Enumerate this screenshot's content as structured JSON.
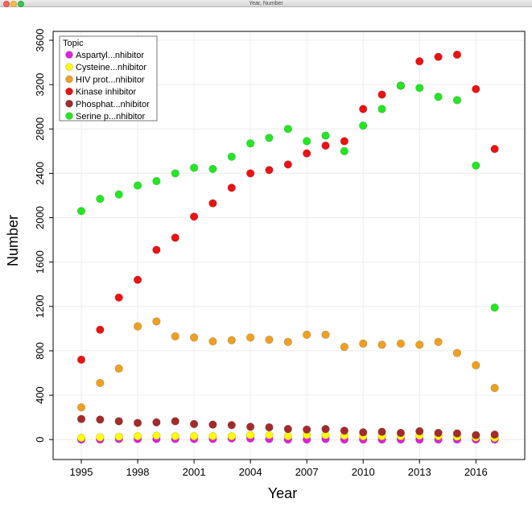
{
  "window": {
    "title": "Year, Number",
    "controls": [
      "close-icon",
      "minimize-icon",
      "maximize-icon"
    ]
  },
  "chart_data": {
    "type": "scatter",
    "title": "",
    "xlabel": "Year",
    "ylabel": "Number",
    "xlim": [
      1993.5,
      2018.6
    ],
    "ylim": [
      -180,
      3680
    ],
    "x_ticks": [
      1995,
      1998,
      2001,
      2004,
      2007,
      2010,
      2013,
      2016
    ],
    "y_ticks": [
      0,
      400,
      800,
      1200,
      1600,
      2000,
      2400,
      2800,
      3200,
      3600
    ],
    "grid": true,
    "legend": {
      "title": "Topic",
      "placement": "top-left"
    },
    "series": [
      {
        "name": "Aspartyl...nhibitor",
        "color": "#e020e0",
        "x": [
          1995,
          1996,
          1997,
          1998,
          1999,
          2000,
          2001,
          2002,
          2003,
          2004,
          2005,
          2006,
          2007,
          2008,
          2009,
          2010,
          2011,
          2012,
          2013,
          2014,
          2015,
          2016,
          2017
        ],
        "y": [
          0,
          0,
          5,
          5,
          5,
          5,
          5,
          5,
          10,
          10,
          5,
          0,
          0,
          5,
          0,
          0,
          0,
          0,
          0,
          0,
          0,
          0,
          0
        ]
      },
      {
        "name": "Cysteine...nhibitor",
        "color": "#ffff00",
        "x": [
          1995,
          1996,
          1997,
          1998,
          1999,
          2000,
          2001,
          2002,
          2003,
          2004,
          2005,
          2006,
          2007,
          2008,
          2009,
          2010,
          2011,
          2012,
          2013,
          2014,
          2015,
          2016,
          2017
        ],
        "y": [
          15,
          20,
          25,
          30,
          35,
          30,
          30,
          30,
          30,
          40,
          40,
          30,
          40,
          40,
          35,
          30,
          30,
          30,
          35,
          30,
          25,
          20,
          15
        ]
      },
      {
        "name": "HIV prot...nhibitor",
        "color": "#f0a020",
        "x": [
          1995,
          1996,
          1997,
          1998,
          1999,
          2000,
          2001,
          2002,
          2003,
          2004,
          2005,
          2006,
          2007,
          2008,
          2009,
          2010,
          2011,
          2012,
          2013,
          2014,
          2015,
          2016,
          2017
        ],
        "y": [
          290,
          510,
          640,
          1020,
          1065,
          930,
          920,
          885,
          895,
          920,
          900,
          880,
          945,
          945,
          835,
          865,
          855,
          865,
          855,
          880,
          780,
          670,
          465
        ]
      },
      {
        "name": "Kinase inhibitor",
        "color": "#ee1111",
        "x": [
          1995,
          1996,
          1997,
          1998,
          1999,
          2000,
          2001,
          2002,
          2003,
          2004,
          2005,
          2006,
          2007,
          2008,
          2009,
          2010,
          2011,
          2012,
          2013,
          2014,
          2015,
          2016,
          2017
        ],
        "y": [
          720,
          990,
          1280,
          1440,
          1710,
          1820,
          2010,
          2130,
          2270,
          2400,
          2430,
          2480,
          2580,
          2650,
          2690,
          2980,
          3110,
          3190,
          3410,
          3450,
          3470,
          3160,
          2620
        ]
      },
      {
        "name": "Phosphat...nhibitor",
        "color": "#a52a2a",
        "x": [
          1995,
          1996,
          1997,
          1998,
          1999,
          2000,
          2001,
          2002,
          2003,
          2004,
          2005,
          2006,
          2007,
          2008,
          2009,
          2010,
          2011,
          2012,
          2013,
          2014,
          2015,
          2016,
          2017
        ],
        "y": [
          185,
          180,
          165,
          150,
          155,
          165,
          140,
          135,
          130,
          115,
          110,
          95,
          90,
          95,
          80,
          65,
          70,
          60,
          75,
          60,
          55,
          40,
          45
        ]
      },
      {
        "name": "Serine p...nhibitor",
        "color": "#22e822",
        "x": [
          1995,
          1996,
          1997,
          1998,
          1999,
          2000,
          2001,
          2002,
          2003,
          2004,
          2005,
          2006,
          2007,
          2008,
          2009,
          2010,
          2011,
          2012,
          2013,
          2014,
          2015,
          2016,
          2017
        ],
        "y": [
          2060,
          2170,
          2210,
          2290,
          2330,
          2400,
          2450,
          2440,
          2550,
          2670,
          2720,
          2800,
          2690,
          2740,
          2600,
          2830,
          2980,
          3190,
          3170,
          3090,
          3060,
          2470,
          1190
        ]
      }
    ]
  }
}
